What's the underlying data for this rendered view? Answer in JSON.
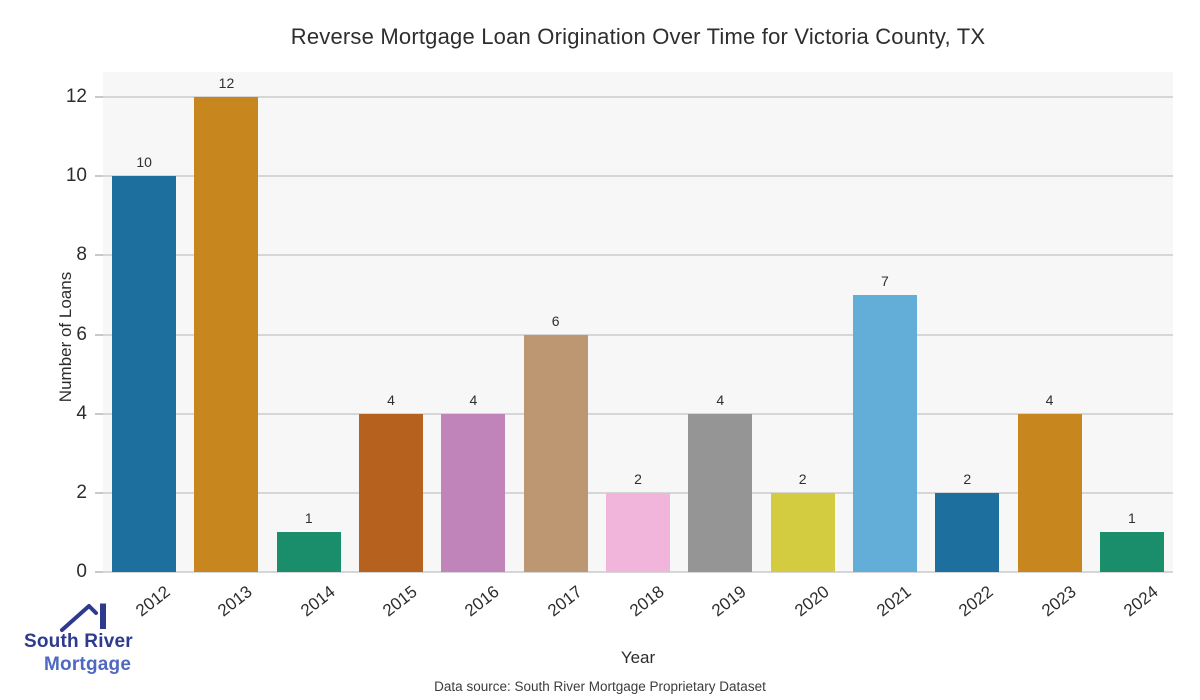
{
  "chart_data": {
    "type": "bar",
    "title": "Reverse Mortgage Loan Origination Over Time for Victoria County, TX",
    "xlabel": "Year",
    "ylabel": "Number of Loans",
    "categories": [
      "2012",
      "2013",
      "2014",
      "2015",
      "2016",
      "2017",
      "2018",
      "2019",
      "2020",
      "2021",
      "2022",
      "2023",
      "2024"
    ],
    "values": [
      10,
      12,
      1,
      4,
      4,
      6,
      2,
      4,
      2,
      7,
      2,
      4,
      1
    ],
    "bar_colors": [
      "#1d6f9e",
      "#c7871e",
      "#1a8e6b",
      "#b7611e",
      "#c184ba",
      "#bd9672",
      "#f1b4db",
      "#959595",
      "#d3cb40",
      "#63aed8",
      "#1d6f9e",
      "#c7871e",
      "#1a8e6b"
    ],
    "yticks": [
      0,
      2,
      4,
      6,
      8,
      10,
      12
    ],
    "ylim": [
      0,
      12.63
    ],
    "grid": "horizontal",
    "legend": "none",
    "plot_background": "#f7f7f7",
    "gridline_color": "#d6d6d6",
    "value_labels_shown": true,
    "x_tick_rotation_deg": -38
  },
  "footer": {
    "text": "Data source: South River Mortgage Proprietary Dataset"
  },
  "logo": {
    "line1": "South River",
    "line2": "Mortgage",
    "navy": "#2d3a8e",
    "blue": "#4f69c2"
  }
}
